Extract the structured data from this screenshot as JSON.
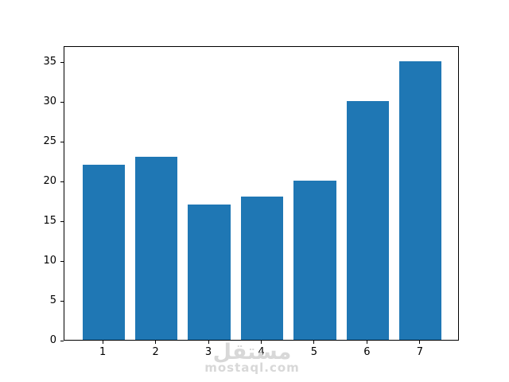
{
  "chart_data": {
    "type": "bar",
    "categories": [
      "1",
      "2",
      "3",
      "4",
      "5",
      "6",
      "7"
    ],
    "values": [
      22,
      23,
      17,
      18,
      20,
      30,
      35
    ],
    "title": "",
    "xlabel": "",
    "ylabel": "",
    "x": [
      1,
      2,
      3,
      4,
      5,
      6,
      7
    ],
    "xlim": [
      0.26,
      7.74
    ],
    "ylim": [
      0,
      37
    ],
    "yticks": [
      0,
      5,
      10,
      15,
      20,
      25,
      30,
      35
    ],
    "bar_width_units": 0.8,
    "bar_color": "#1f77b4",
    "spine_color": "#000000",
    "grid": false,
    "legend": null
  },
  "watermark": {
    "arabic_text": "مستقل",
    "url_text": "mostaql.com",
    "color": "#d8d8d8"
  }
}
